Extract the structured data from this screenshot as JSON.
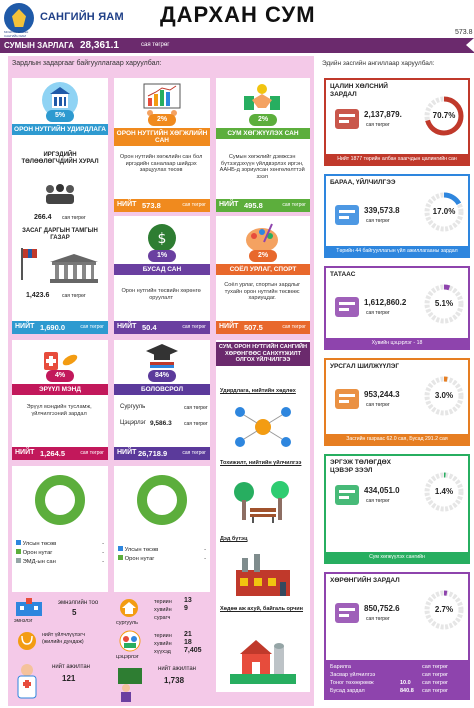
{
  "header": {
    "logo_small": "МОНГОЛ УЛСЫН САНГИЙН ЯАМ",
    "logo_text": "САНГИЙН ЯАМ",
    "title": "ДАРХАН СУМ",
    "corner_value": "573.8"
  },
  "budget": {
    "label": "СУМЫН ЗАРЛАГА",
    "value": "28,361.1",
    "unit": "сая төгрөг"
  },
  "left": {
    "heading": "Зардлын задаргааг байгууллагаар харуулбал:",
    "cards": [
      {
        "pct": "5%",
        "title": "ОРОН НУТГИЙН УДИРДЛАГА",
        "total_label": "НИЙТ",
        "total_value": "1,690.0",
        "unit": "сая төгрөг"
      },
      {
        "pct": "2%",
        "title": "ОРОН НУТГИЙН ХӨГЖЛИЙН САН",
        "desc": "Орон нутгийн хөгжлийн сан бол иргэдийн саналаар шийдэх зарцуулах төсөв",
        "total_label": "НИЙТ",
        "total_value": "573.8",
        "unit": "сая төгрөг"
      },
      {
        "pct": "2%",
        "title": "СУМ ХӨГЖҮҮЛЭХ САН",
        "desc": "Сумын хөгжлийг дэмжсэн бүтээгдэхүүн үйлдвэрлэх иргэн, ААНБ-д зориулсан хөнгөлөлттэй зээл",
        "total_label": "НИЙТ",
        "total_value": "495.8",
        "unit": "сая төгрөг"
      },
      {
        "pct": "1%",
        "title": "БУСАД САН",
        "desc": "Орон нутгийн төсвийн хөрөнгө оруулалт",
        "total_label": "НИЙТ",
        "total_value": "50.4",
        "unit": "сая төгрөг"
      },
      {
        "pct": "2%",
        "title": "СОЁЛ УРЛАГ, СПОРТ",
        "desc": "Соёл урлаг, спортын зардлыг тухайн орон нутгийн төсвөөс хариуцдаг.",
        "total_label": "НИЙТ",
        "total_value": "507.5",
        "unit": "сая төгрөг"
      },
      {
        "pct": "4%",
        "title": "ЭРҮҮЛ МЭНД",
        "desc": "Эрүүл мэндийн тусламж, үйлчилгээний зардал",
        "total_label": "НИЙТ",
        "total_value": "1,264.5",
        "unit": "сая төгрөг"
      },
      {
        "pct": "84%",
        "title": "БОЛОВСРОЛ",
        "row1_label": "Сургууль",
        "row1_value": "",
        "row1_unit": "сая төгрөг",
        "row2_label": "Цэцэрлэг",
        "row2_value": "9,586.3",
        "row2_unit": "сая төгрөг",
        "total_label": "НИЙТ",
        "total_value": "26,718.9",
        "unit": "сая төгрөг"
      }
    ],
    "admin": {
      "sub1": "ИРГЭДИЙН ТӨЛӨӨЛӨГЧДИЙН ХУРАЛ",
      "sub1_value": "266.4",
      "sub1_unit": "сая төгрөг",
      "sub2": "ЗАСАГ ДАРГЫН ТАМГЫН ГАЗАР",
      "sub2_value": "1,423.6",
      "sub2_unit": "сая төгрөг"
    },
    "services": {
      "title": "СУМ, ОРОН НУТГИЙН САНГИЙН ХӨРӨНГӨӨС САНХҮҮЖИЛТ ОЛГОХ ҮЙЛЧИЛГЭЭ",
      "items": [
        "Удирдлага, нийтийн хөдлөх",
        "Тохижилт, нийтийн үйлчилгээ",
        "Дэд бүтэц",
        "Хөдөө аж ахуй, байгаль орчин"
      ]
    },
    "donut1": {
      "label": "100%",
      "legend": [
        {
          "name": "Улсын төсөв",
          "value": "-"
        },
        {
          "name": "Орон нутаг",
          "value": "-"
        },
        {
          "name": "ЭМД-ын сан",
          "value": "-"
        }
      ]
    },
    "donut2": {
      "label": "100%",
      "legend": [
        {
          "name": "Улсын төсөв",
          "value": "-"
        },
        {
          "name": "Орон нутаг",
          "value": "-"
        }
      ]
    },
    "stats": {
      "hospital_label": "эмнэлэг",
      "hospital_count_label": "эмнэлгийн тоо",
      "hospital_count": "5",
      "service_label": "нийт үйлчлүүлэгч (жилийн дундаж)",
      "doctor_label": "нийт ажилтан",
      "doctor_count": "121",
      "school_label": "сургууль",
      "school_terms": [
        "териин",
        "хувийн",
        "сурагч"
      ],
      "school_values": [
        "13",
        "9",
        ""
      ],
      "kinder_label": "цэцэрлэг",
      "kinder_terms": [
        "териин",
        "хувийн",
        "хүүхэд"
      ],
      "kinder_values": [
        "21",
        "18",
        "7,405"
      ],
      "edu_staff_label": "нийт ажилтан",
      "edu_staff_count": "1,738"
    }
  },
  "right": {
    "heading": "Эдийн засгийн ангиллаар харуулбал:",
    "cards": [
      {
        "title": "ЦАЛИН ХӨЛСНИЙ ЗАРДАЛ",
        "value": "2,137,879.",
        "unit": "сая төгрөг",
        "pct": "70.7%",
        "fraction": 0.707,
        "note": "Нийт 1877 төрийн албан хаагчдын цалингийн сан",
        "color": "#c0392b"
      },
      {
        "title": "БАРАА, ҮЙЛЧИЛГЭЭ",
        "value": "339,573.8",
        "unit": "сая төгрөг",
        "pct": "17.0%",
        "fraction": 0.17,
        "note": "Төрийн 44 байгууллагын үйл ажиллагааны зардал",
        "color": "#2e86de"
      },
      {
        "title": "ТАТААС",
        "value": "1,612,860.2",
        "unit": "сая төгрөг",
        "pct": "5.1%",
        "fraction": 0.051,
        "note": "Хувийн цэцэрлэг - 18",
        "color": "#8e44ad"
      },
      {
        "title": "УРСГАЛ ШИЛЖҮҮЛЭГ",
        "value": "953,244.3",
        "unit": "сая төгрөг",
        "pct": "3.0%",
        "fraction": 0.03,
        "note": "Засгийн газраас 62.0 сая, Бусад 291.2 сая",
        "color": "#e67e22"
      },
      {
        "title": "ЭРГЭЖ ТӨЛӨГДӨХ ЦЭВЭР ЗЭЭЛ",
        "value": "434,051.0",
        "unit": "сая төгрөг",
        "pct": "1.4%",
        "fraction": 0.014,
        "note": "Сум хөгжүүлэх сангийн",
        "color": "#27ae60"
      },
      {
        "title": "ХӨРӨНГИЙН ЗАРДАЛ",
        "value": "850,752.6",
        "unit": "сая төгрөг",
        "pct": "2.7%",
        "fraction": 0.027,
        "color": "#8e44ad",
        "rows": [
          {
            "label": "Барилга",
            "value": "",
            "unit": "сая төгрөг"
          },
          {
            "label": "Засвар үйлчилгээ",
            "value": "",
            "unit": "сая төгрөг"
          },
          {
            "label": "Тоног төхөөрөмж",
            "value": "10.0",
            "unit": "сая төгрөг"
          },
          {
            "label": "Бусад зардал",
            "value": "840.8",
            "unit": "сая төгрөг"
          }
        ]
      }
    ]
  }
}
